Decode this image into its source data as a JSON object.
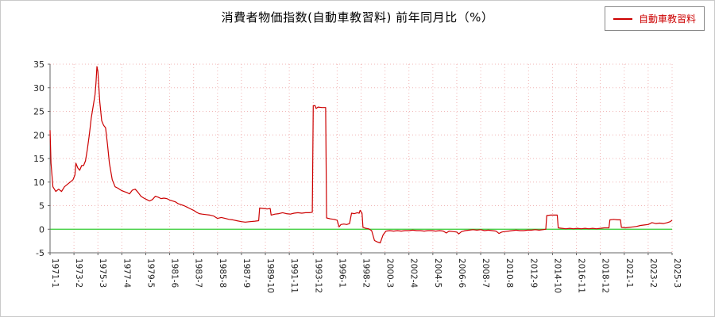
{
  "chart_data": {
    "type": "line",
    "title": "消費者物価指数(自動車教習料) 前年同月比（%）",
    "ylim": [
      -5,
      35
    ],
    "y_ticks": [
      -5,
      0,
      5,
      10,
      15,
      20,
      25,
      30,
      35
    ],
    "x_range": {
      "start": "1971-1",
      "end": "2025-3"
    },
    "x_ticks": [
      "1971-1",
      "1973-2",
      "1975-3",
      "1977-4",
      "1979-5",
      "1981-6",
      "1983-7",
      "1985-8",
      "1987-9",
      "1989-10",
      "1991-11",
      "1993-12",
      "1996-1",
      "1998-2",
      "2000-3",
      "2002-4",
      "2004-5",
      "2006-6",
      "2008-7",
      "2010-8",
      "2012-9",
      "2014-10",
      "2016-11",
      "2018-12",
      "2021-1",
      "2023-2",
      "2025-3"
    ],
    "grid": true,
    "legend_position": "top-right",
    "colors": {
      "grid": "#f0b4b4",
      "zero_line": "#33cc33",
      "spine": "#666666",
      "background": "#ffffff"
    },
    "series": [
      {
        "name": "自動車教習料",
        "color": "#cc0000",
        "points": [
          [
            "1971-1",
            21
          ],
          [
            "1971-2",
            14
          ],
          [
            "1971-4",
            9
          ],
          [
            "1971-7",
            8
          ],
          [
            "1971-10",
            8.5
          ],
          [
            "1972-1",
            8
          ],
          [
            "1972-4",
            9
          ],
          [
            "1972-7",
            9.5
          ],
          [
            "1972-10",
            10
          ],
          [
            "1973-1",
            10.5
          ],
          [
            "1973-3",
            11.5
          ],
          [
            "1973-4",
            14
          ],
          [
            "1973-6",
            13
          ],
          [
            "1973-8",
            12.5
          ],
          [
            "1973-10",
            13.5
          ],
          [
            "1973-12",
            13.5
          ],
          [
            "1974-2",
            14.5
          ],
          [
            "1974-4",
            17
          ],
          [
            "1974-6",
            20
          ],
          [
            "1974-8",
            23.5
          ],
          [
            "1974-10",
            26
          ],
          [
            "1974-12",
            28.5
          ],
          [
            "1975-1",
            31
          ],
          [
            "1975-2",
            34.5
          ],
          [
            "1975-3",
            33.5
          ],
          [
            "1975-5",
            27
          ],
          [
            "1975-7",
            23
          ],
          [
            "1975-9",
            22
          ],
          [
            "1975-11",
            21.5
          ],
          [
            "1976-1",
            18
          ],
          [
            "1976-3",
            14
          ],
          [
            "1976-6",
            10.5
          ],
          [
            "1976-9",
            9
          ],
          [
            "1976-12",
            8.7
          ],
          [
            "1977-3",
            8.3
          ],
          [
            "1977-6",
            8
          ],
          [
            "1977-9",
            7.8
          ],
          [
            "1977-12",
            7.5
          ],
          [
            "1978-3",
            8.3
          ],
          [
            "1978-6",
            8.5
          ],
          [
            "1978-9",
            7.8
          ],
          [
            "1978-12",
            7
          ],
          [
            "1979-3",
            6.6
          ],
          [
            "1979-6",
            6.3
          ],
          [
            "1979-9",
            6
          ],
          [
            "1979-12",
            6.3
          ],
          [
            "1980-3",
            7
          ],
          [
            "1980-6",
            6.8
          ],
          [
            "1980-9",
            6.5
          ],
          [
            "1980-12",
            6.6
          ],
          [
            "1981-3",
            6.5
          ],
          [
            "1981-6",
            6.2
          ],
          [
            "1981-9",
            6
          ],
          [
            "1981-12",
            5.8
          ],
          [
            "1982-3",
            5.4
          ],
          [
            "1982-6",
            5.2
          ],
          [
            "1982-9",
            5
          ],
          [
            "1982-12",
            4.7
          ],
          [
            "1983-3",
            4.4
          ],
          [
            "1983-7",
            4
          ],
          [
            "1983-10",
            3.6
          ],
          [
            "1984-1",
            3.3
          ],
          [
            "1984-4",
            3.2
          ],
          [
            "1984-8",
            3.1
          ],
          [
            "1984-12",
            3
          ],
          [
            "1985-4",
            2.8
          ],
          [
            "1985-8",
            2.3
          ],
          [
            "1985-12",
            2.5
          ],
          [
            "1986-4",
            2.3
          ],
          [
            "1986-8",
            2.1
          ],
          [
            "1986-12",
            2
          ],
          [
            "1987-4",
            1.8
          ],
          [
            "1987-9",
            1.6
          ],
          [
            "1988-1",
            1.5
          ],
          [
            "1988-6",
            1.6
          ],
          [
            "1988-11",
            1.7
          ],
          [
            "1989-3",
            1.8
          ],
          [
            "1989-4",
            4.5
          ],
          [
            "1989-8",
            4.4
          ],
          [
            "1989-12",
            4.3
          ],
          [
            "1990-3",
            4.4
          ],
          [
            "1990-4",
            3
          ],
          [
            "1990-8",
            3.2
          ],
          [
            "1990-12",
            3.3
          ],
          [
            "1991-4",
            3.5
          ],
          [
            "1991-8",
            3.3
          ],
          [
            "1991-12",
            3.2
          ],
          [
            "1992-4",
            3.4
          ],
          [
            "1992-8",
            3.5
          ],
          [
            "1992-12",
            3.4
          ],
          [
            "1993-4",
            3.5
          ],
          [
            "1993-8",
            3.5
          ],
          [
            "1993-11",
            3.6
          ],
          [
            "1993-12",
            26.2
          ],
          [
            "1994-2",
            26.2
          ],
          [
            "1994-3",
            25.6
          ],
          [
            "1994-5",
            25.9
          ],
          [
            "1994-9",
            25.8
          ],
          [
            "1995-1",
            25.8
          ],
          [
            "1995-2",
            2.4
          ],
          [
            "1995-6",
            2.2
          ],
          [
            "1995-10",
            2.1
          ],
          [
            "1996-1",
            1.9
          ],
          [
            "1996-3",
            0.5
          ],
          [
            "1996-5",
            1
          ],
          [
            "1996-8",
            1.1
          ],
          [
            "1996-11",
            1
          ],
          [
            "1997-2",
            1.2
          ],
          [
            "1997-4",
            3.4
          ],
          [
            "1997-7",
            3.3
          ],
          [
            "1997-10",
            3.5
          ],
          [
            "1997-12",
            3.4
          ],
          [
            "1998-1",
            4
          ],
          [
            "1998-3",
            3.4
          ],
          [
            "1998-4",
            0.4
          ],
          [
            "1998-7",
            0.2
          ],
          [
            "1998-10",
            0.1
          ],
          [
            "1999-1",
            -0.3
          ],
          [
            "1999-4",
            -2.4
          ],
          [
            "1999-7",
            -2.7
          ],
          [
            "1999-10",
            -2.9
          ],
          [
            "2000-1",
            -1.2
          ],
          [
            "2000-4",
            -0.4
          ],
          [
            "2000-8",
            -0.3
          ],
          [
            "2000-12",
            -0.4
          ],
          [
            "2001-4",
            -0.3
          ],
          [
            "2001-8",
            -0.4
          ],
          [
            "2001-12",
            -0.3
          ],
          [
            "2002-4",
            -0.3
          ],
          [
            "2002-8",
            -0.2
          ],
          [
            "2002-12",
            -0.3
          ],
          [
            "2003-4",
            -0.3
          ],
          [
            "2003-8",
            -0.4
          ],
          [
            "2003-12",
            -0.3
          ],
          [
            "2004-4",
            -0.3
          ],
          [
            "2004-8",
            -0.4
          ],
          [
            "2004-12",
            -0.3
          ],
          [
            "2005-4",
            -0.4
          ],
          [
            "2005-7",
            -0.8
          ],
          [
            "2005-10",
            -0.4
          ],
          [
            "2006-2",
            -0.5
          ],
          [
            "2006-6",
            -0.6
          ],
          [
            "2006-8",
            -1
          ],
          [
            "2006-11",
            -0.5
          ],
          [
            "2007-3",
            -0.3
          ],
          [
            "2007-7",
            -0.2
          ],
          [
            "2007-11",
            -0.1
          ],
          [
            "2008-3",
            -0.2
          ],
          [
            "2008-7",
            -0.1
          ],
          [
            "2008-11",
            -0.3
          ],
          [
            "2009-3",
            -0.2
          ],
          [
            "2009-7",
            -0.3
          ],
          [
            "2009-11",
            -0.4
          ],
          [
            "2010-2",
            -0.9
          ],
          [
            "2010-5",
            -0.6
          ],
          [
            "2010-8",
            -0.5
          ],
          [
            "2010-12",
            -0.4
          ],
          [
            "2011-4",
            -0.3
          ],
          [
            "2011-8",
            -0.2
          ],
          [
            "2011-12",
            -0.3
          ],
          [
            "2012-4",
            -0.3
          ],
          [
            "2012-8",
            -0.2
          ],
          [
            "2012-12",
            -0.2
          ],
          [
            "2013-4",
            -0.1
          ],
          [
            "2013-8",
            -0.2
          ],
          [
            "2013-12",
            -0.1
          ],
          [
            "2014-3",
            0
          ],
          [
            "2014-4",
            2.9
          ],
          [
            "2014-8",
            3
          ],
          [
            "2014-12",
            3
          ],
          [
            "2015-3",
            3
          ],
          [
            "2015-4",
            0.3
          ],
          [
            "2015-8",
            0.2
          ],
          [
            "2015-12",
            0.1
          ],
          [
            "2016-4",
            0.2
          ],
          [
            "2016-8",
            0.1
          ],
          [
            "2016-12",
            0.2
          ],
          [
            "2017-4",
            0.1
          ],
          [
            "2017-8",
            0.2
          ],
          [
            "2017-12",
            0.1
          ],
          [
            "2018-4",
            0.2
          ],
          [
            "2018-8",
            0.1
          ],
          [
            "2018-12",
            0.2
          ],
          [
            "2019-4",
            0.3
          ],
          [
            "2019-9",
            0.3
          ],
          [
            "2019-10",
            2
          ],
          [
            "2020-2",
            2.1
          ],
          [
            "2020-6",
            2
          ],
          [
            "2020-9",
            2
          ],
          [
            "2020-10",
            0.4
          ],
          [
            "2021-2",
            0.3
          ],
          [
            "2021-6",
            0.4
          ],
          [
            "2021-10",
            0.5
          ],
          [
            "2022-2",
            0.6
          ],
          [
            "2022-6",
            0.8
          ],
          [
            "2022-10",
            0.9
          ],
          [
            "2023-2",
            1
          ],
          [
            "2023-6",
            1.4
          ],
          [
            "2023-10",
            1.2
          ],
          [
            "2024-2",
            1.3
          ],
          [
            "2024-6",
            1.2
          ],
          [
            "2024-10",
            1.4
          ],
          [
            "2025-1",
            1.6
          ],
          [
            "2025-3",
            1.9
          ]
        ]
      }
    ]
  }
}
